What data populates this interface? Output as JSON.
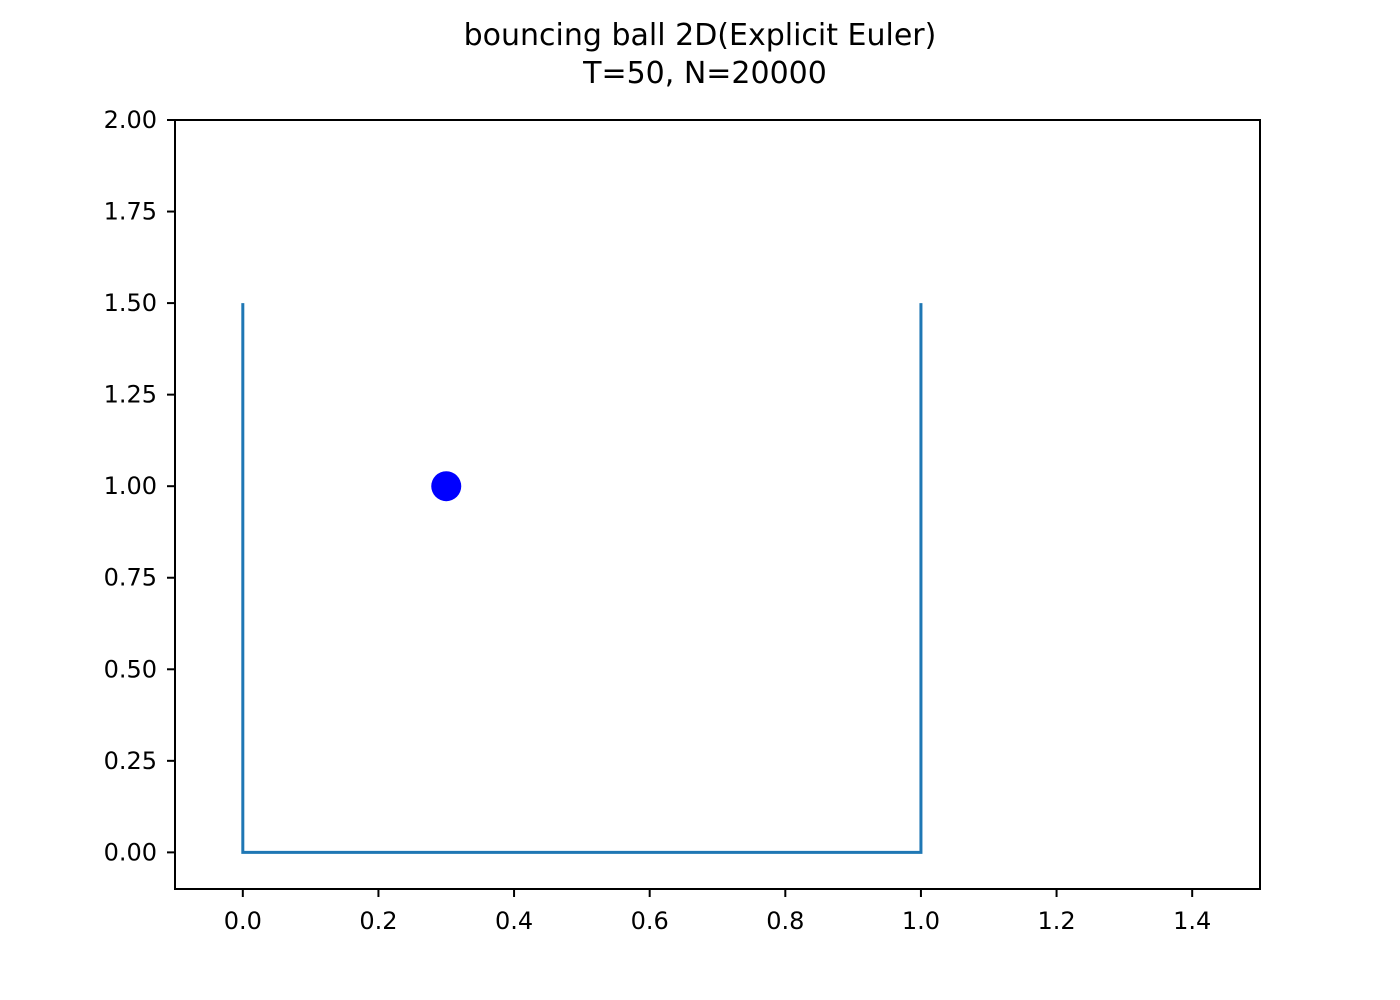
{
  "chart_data": {
    "type": "line",
    "title": "bouncing ball 2D(Explicit Euler)",
    "subtitle": "T=50, N=20000",
    "xlabel": "",
    "ylabel": "",
    "xlim": [
      -0.1,
      1.5
    ],
    "ylim": [
      -0.1,
      2.0
    ],
    "grid": false,
    "x_ticks": [
      0.0,
      0.2,
      0.4,
      0.6,
      0.8,
      1.0,
      1.2,
      1.4
    ],
    "x_tick_labels": [
      "0.0",
      "0.2",
      "0.4",
      "0.6",
      "0.8",
      "1.0",
      "1.2",
      "1.4"
    ],
    "y_ticks": [
      0.0,
      0.25,
      0.5,
      0.75,
      1.0,
      1.25,
      1.5,
      1.75,
      2.0
    ],
    "y_tick_labels": [
      "0.00",
      "0.25",
      "0.50",
      "0.75",
      "1.00",
      "1.25",
      "1.50",
      "1.75",
      "2.00"
    ],
    "series": [
      {
        "type": "line",
        "color": "#1f77b4",
        "x": [
          0.0,
          0.0,
          1.0,
          1.0
        ],
        "y": [
          1.5,
          0.0,
          0.0,
          1.5
        ]
      },
      {
        "type": "scatter",
        "color": "#0000ff",
        "x": [
          0.3
        ],
        "y": [
          1.0
        ]
      }
    ]
  }
}
